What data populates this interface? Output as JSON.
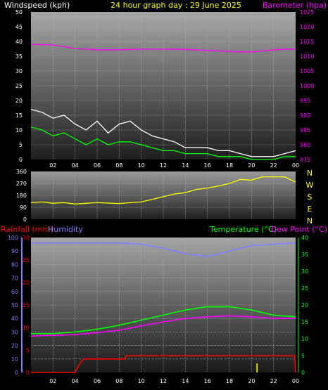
{
  "chart_data": [
    {
      "type": "line",
      "title": "24 hour graph day : 29 June 2025",
      "left_axis_label": "Windspeed (kph)",
      "right_axis_label": "Barometer (hpa)",
      "left_ticks": [
        0,
        5,
        10,
        15,
        20,
        25,
        30,
        35,
        40,
        45,
        50
      ],
      "left_range": [
        0,
        50
      ],
      "right_ticks": [
        975,
        980,
        985,
        990,
        995,
        1000,
        1005,
        1010,
        1015,
        1020,
        1025
      ],
      "right_range": [
        975,
        1025
      ],
      "x_tick_labels": [
        "02",
        "04",
        "06",
        "08",
        "10",
        "12",
        "14",
        "16",
        "18",
        "20",
        "22",
        "00"
      ],
      "x_range_hours": [
        0,
        24
      ],
      "grid": true,
      "series": [
        {
          "color": "#ffffff",
          "axis": "left",
          "x": [
            0,
            1,
            2,
            3,
            4,
            5,
            6,
            7,
            8,
            9,
            10,
            11,
            12,
            13,
            14,
            15,
            16,
            17,
            18,
            19,
            20,
            21,
            22,
            23,
            24
          ],
          "y": [
            17,
            16,
            14,
            15,
            12,
            10,
            13,
            9,
            12,
            13,
            10,
            8,
            7,
            6,
            4,
            4,
            4,
            3,
            3,
            2,
            1,
            1,
            1,
            2,
            3
          ]
        },
        {
          "color": "#00ff00",
          "axis": "left",
          "x": [
            0,
            1,
            2,
            3,
            4,
            5,
            6,
            7,
            8,
            9,
            10,
            11,
            12,
            13,
            14,
            15,
            16,
            17,
            18,
            19,
            20,
            21,
            22,
            23,
            24
          ],
          "y": [
            11,
            10,
            8,
            9,
            7,
            5,
            7,
            5,
            6,
            6,
            5,
            4,
            3,
            3,
            2,
            2,
            2,
            1,
            1,
            1,
            0,
            0,
            0,
            1,
            1
          ]
        },
        {
          "color": "#ff00ff",
          "axis": "right",
          "x": [
            0,
            2,
            4,
            6,
            8,
            10,
            12,
            14,
            16,
            18,
            20,
            22,
            24
          ],
          "y": [
            1014,
            1013.8,
            1012.6,
            1012.2,
            1012.2,
            1012.4,
            1012.4,
            1012.3,
            1012.0,
            1011.6,
            1011.4,
            1012.2,
            1012.5
          ]
        }
      ]
    },
    {
      "type": "scatter",
      "left_ticks": [
        0,
        90,
        180,
        270,
        360
      ],
      "left_range": [
        0,
        360
      ],
      "right_labels": [
        "N",
        "W",
        "S",
        "E",
        "N"
      ],
      "x_range_hours": [
        0,
        24
      ],
      "grid": true,
      "series": [
        {
          "color": "#ffff00",
          "x": [
            0,
            1,
            2,
            3,
            4,
            5,
            6,
            7,
            8,
            9,
            10,
            11,
            12,
            13,
            14,
            15,
            16,
            17,
            18,
            19,
            20,
            21,
            22,
            23,
            24
          ],
          "y": [
            125,
            130,
            120,
            125,
            115,
            120,
            125,
            122,
            118,
            125,
            130,
            150,
            170,
            190,
            200,
            225,
            235,
            250,
            270,
            300,
            295,
            320,
            320,
            320,
            280
          ]
        }
      ]
    },
    {
      "type": "line",
      "left_axis_label_1": "Rainfall (mm)",
      "left_axis_label_2": "Humidity",
      "right_axis_label_1": "Temperature (°C)",
      "right_axis_label_2": "Dew Point (°C)",
      "rain_ticks": [
        0,
        5,
        10,
        15,
        20,
        25,
        30
      ],
      "rain_range": [
        0,
        30
      ],
      "humidity_ticks": [
        0,
        10,
        20,
        30,
        40,
        50,
        60,
        70,
        80,
        90,
        100
      ],
      "humidity_range": [
        0,
        100
      ],
      "temp_ticks": [
        0,
        5,
        10,
        15,
        20,
        25,
        30,
        35,
        40
      ],
      "temp_range": [
        0,
        40
      ],
      "x_tick_labels": [
        "02",
        "04",
        "06",
        "08",
        "10",
        "12",
        "14",
        "16",
        "18",
        "20",
        "22",
        "00"
      ],
      "x_range_hours": [
        0,
        24
      ],
      "grid": true,
      "series": [
        {
          "color": "#8080ff",
          "axis": "humidity",
          "x": [
            0,
            2,
            4,
            6,
            8,
            10,
            12,
            14,
            16,
            18,
            20,
            22,
            24
          ],
          "y": [
            96,
            96,
            96,
            96,
            96,
            95,
            92,
            88,
            86,
            90,
            94,
            95,
            96
          ]
        },
        {
          "color": "#00ff00",
          "axis": "temp",
          "x": [
            0,
            2,
            4,
            6,
            8,
            10,
            12,
            14,
            16,
            18,
            20,
            22,
            24
          ],
          "y": [
            11.5,
            11.5,
            12,
            12.8,
            14,
            15.5,
            17,
            18.5,
            19.5,
            19.5,
            18.5,
            17,
            16.5
          ]
        },
        {
          "color": "#ff00ff",
          "axis": "temp",
          "x": [
            0,
            2,
            4,
            6,
            8,
            10,
            12,
            14,
            16,
            18,
            20,
            22,
            24
          ],
          "y": [
            10.8,
            11,
            11.2,
            11.8,
            12.5,
            13.8,
            15,
            16,
            16.5,
            16.8,
            16.5,
            16,
            16
          ]
        },
        {
          "color": "#ff0000",
          "axis": "rain",
          "x": [
            0,
            4,
            4.3,
            4.6,
            4.8,
            5,
            8.5,
            8.6,
            23.9,
            24
          ],
          "y": [
            0,
            0,
            1.5,
            2.5,
            3,
            3,
            3,
            3.7,
            3.7,
            0
          ]
        },
        {
          "color": "#ffff00",
          "axis": "rain",
          "x": [
            20.5,
            20.5
          ],
          "y": [
            0,
            2
          ]
        }
      ]
    }
  ]
}
